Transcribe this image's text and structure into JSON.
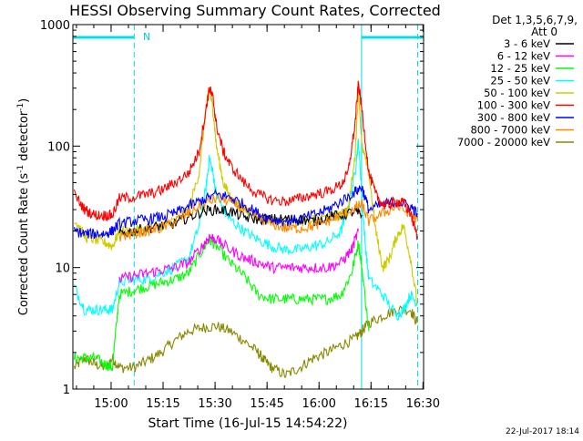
{
  "chart_data": {
    "type": "line",
    "title": "HESSI Observing Summary Count Rates, Corrected",
    "xlabel": "Start Time (16-Jul-15 14:54:22)",
    "ylabel_main": "Corrected Count Rate (s",
    "ylabel_sup1": "-1",
    "ylabel_mid": " detector",
    "ylabel_sup2": "-1",
    "ylabel_end": ")",
    "footer": "22-Jul-2017 18:14",
    "x_range_minutes": [
      -5.4,
      95.8
    ],
    "y_range": [
      1,
      1000
    ],
    "y_scale": "log",
    "x_ticks": [
      {
        "t": 5.63,
        "label": "15:00"
      },
      {
        "t": 20.63,
        "label": "15:15"
      },
      {
        "t": 35.63,
        "label": "15:30"
      },
      {
        "t": 50.63,
        "label": "15:45"
      },
      {
        "t": 65.63,
        "label": "16:00"
      },
      {
        "t": 80.63,
        "label": "16:15"
      },
      {
        "t": 95.63,
        "label": "16:30"
      }
    ],
    "y_ticks": [
      {
        "v": 1,
        "label": "1"
      },
      {
        "v": 10,
        "label": "10"
      },
      {
        "v": 100,
        "label": "100"
      },
      {
        "v": 1000,
        "label": "1000"
      }
    ],
    "legend": {
      "header1": "Det 1,3,5,6,7,9,",
      "header2": "Att 0",
      "placement": "right"
    },
    "night_marker": "N",
    "night_bars": [
      {
        "x1": -5.4,
        "x2": 12.3
      },
      {
        "x1": 77.9,
        "x2": 95.8
      }
    ],
    "dashed_lines": [
      12.3,
      94.1
    ],
    "solid_lines": [
      -5.4,
      77.9
    ],
    "series": [
      {
        "name": "3 - 6 keV",
        "color": "#000000",
        "x": [
          8,
          12,
          16,
          20,
          24,
          28,
          32,
          36,
          40,
          44,
          48,
          52,
          56,
          60,
          64,
          68,
          72,
          76,
          78
        ],
        "y": [
          19,
          20,
          21,
          22,
          23,
          26,
          29,
          30,
          29,
          26,
          25,
          25,
          25,
          25,
          24,
          26,
          27,
          29,
          27
        ]
      },
      {
        "name": "6 - 12 keV",
        "color": "#ff00ff",
        "x": [
          8,
          12,
          16,
          20,
          24,
          28,
          32,
          34,
          36,
          40,
          44,
          48,
          52,
          56,
          60,
          64,
          68,
          72,
          75,
          77
        ],
        "y": [
          8,
          8.5,
          9,
          9.5,
          10,
          11,
          15,
          18,
          17,
          14,
          12,
          11,
          10,
          10,
          10,
          10,
          10,
          11,
          14,
          20
        ]
      },
      {
        "name": "12 - 25 keV",
        "color": "#00ff00",
        "x": [
          -5,
          -2,
          1,
          4,
          6,
          8,
          12,
          16,
          20,
          24,
          28,
          32,
          34,
          36,
          40,
          44,
          48,
          52,
          56,
          60,
          64,
          68,
          72,
          75,
          77,
          78,
          80
        ],
        "y": [
          1.8,
          1.8,
          1.8,
          1.6,
          1.5,
          6,
          6.5,
          7,
          7.5,
          8,
          9,
          14,
          17,
          15,
          11,
          8.5,
          6,
          5.5,
          5.5,
          5.5,
          5.5,
          5.5,
          6,
          9,
          16,
          10,
          3
        ]
      },
      {
        "name": "25 - 50 keV",
        "color": "#00ffff",
        "x": [
          -5,
          -2,
          1,
          4,
          6,
          8,
          12,
          16,
          20,
          24,
          28,
          31,
          33,
          34,
          35,
          36,
          38,
          40,
          44,
          48,
          52,
          56,
          60,
          64,
          68,
          72,
          74,
          76,
          77,
          78,
          79,
          80,
          84,
          88,
          90,
          92,
          94
        ],
        "y": [
          7,
          4.5,
          4.5,
          4.5,
          4.5,
          7.5,
          8,
          8,
          9,
          10,
          12,
          22,
          45,
          80,
          60,
          40,
          30,
          25,
          20,
          17,
          15,
          14,
          14,
          15,
          16,
          20,
          30,
          60,
          110,
          40,
          15,
          8,
          6,
          4,
          4.5,
          6,
          5
        ]
      },
      {
        "name": "50 - 100 keV",
        "color": "#cccc00",
        "x": [
          -5,
          -2,
          1,
          4,
          6,
          8,
          12,
          16,
          20,
          24,
          28,
          31,
          33,
          34,
          35,
          36,
          38,
          40,
          44,
          48,
          52,
          56,
          60,
          64,
          68,
          72,
          74,
          76,
          77,
          78,
          80,
          82,
          84,
          86,
          88,
          90,
          92,
          94
        ],
        "y": [
          25,
          18,
          17,
          16,
          15,
          20,
          20,
          21,
          22,
          24,
          30,
          60,
          200,
          300,
          200,
          100,
          50,
          38,
          30,
          26,
          24,
          24,
          24,
          25,
          26,
          27,
          30,
          80,
          300,
          100,
          60,
          20,
          10,
          12,
          18,
          22,
          12,
          5
        ]
      },
      {
        "name": "100 - 300 keV",
        "color": "#ff0000",
        "x": [
          -5,
          -2,
          1,
          4,
          6,
          8,
          12,
          16,
          20,
          24,
          28,
          31,
          33,
          34,
          35,
          36,
          38,
          40,
          44,
          48,
          52,
          56,
          60,
          64,
          68,
          72,
          74,
          76,
          77,
          78,
          80,
          82,
          84,
          86,
          88,
          90,
          92,
          94
        ],
        "y": [
          40,
          30,
          27,
          27,
          27,
          37,
          38,
          40,
          43,
          50,
          60,
          90,
          200,
          300,
          250,
          150,
          90,
          70,
          50,
          40,
          36,
          35,
          37,
          40,
          42,
          48,
          60,
          150,
          330,
          200,
          60,
          40,
          33,
          33,
          35,
          34,
          28,
          18
        ]
      },
      {
        "name": "300 - 800 keV",
        "color": "#0000ff",
        "x": [
          -5,
          -2,
          1,
          4,
          6,
          8,
          12,
          16,
          20,
          24,
          28,
          32,
          36,
          40,
          44,
          48,
          52,
          56,
          60,
          64,
          68,
          72,
          76,
          78,
          80,
          84,
          88,
          92,
          94
        ],
        "y": [
          20,
          19,
          19,
          19,
          20,
          23,
          24,
          25,
          26,
          28,
          32,
          36,
          40,
          38,
          33,
          28,
          25,
          24,
          25,
          27,
          30,
          35,
          42,
          46,
          30,
          33,
          35,
          32,
          28
        ]
      },
      {
        "name": "800 - 7000 keV",
        "color": "#ff8800",
        "x": [
          8,
          12,
          16,
          20,
          24,
          28,
          32,
          36,
          40,
          44,
          48,
          52,
          56,
          60,
          64,
          68,
          72,
          76,
          78,
          80,
          84,
          88,
          92,
          94
        ],
        "y": [
          18,
          19,
          20,
          21,
          24,
          28,
          33,
          37,
          35,
          30,
          26,
          23,
          21,
          21,
          22,
          24,
          27,
          31,
          33,
          24,
          28,
          32,
          28,
          25
        ]
      },
      {
        "name": "7000 - 20000 keV",
        "color": "#888800",
        "x": [
          -5,
          -2,
          1,
          4,
          6,
          8,
          12,
          16,
          20,
          24,
          28,
          32,
          36,
          40,
          44,
          48,
          50,
          52,
          56,
          60,
          64,
          68,
          72,
          76,
          78,
          80,
          84,
          88,
          92,
          94
        ],
        "y": [
          1.5,
          1.8,
          1.6,
          1.5,
          1.8,
          1.5,
          1.5,
          1.7,
          2,
          2.5,
          3,
          3.2,
          3.3,
          3,
          2.5,
          2,
          1.7,
          1.5,
          1.3,
          1.5,
          1.8,
          2,
          2.3,
          2.6,
          3,
          3.5,
          4,
          4.5,
          4.5,
          3.5
        ]
      }
    ]
  }
}
